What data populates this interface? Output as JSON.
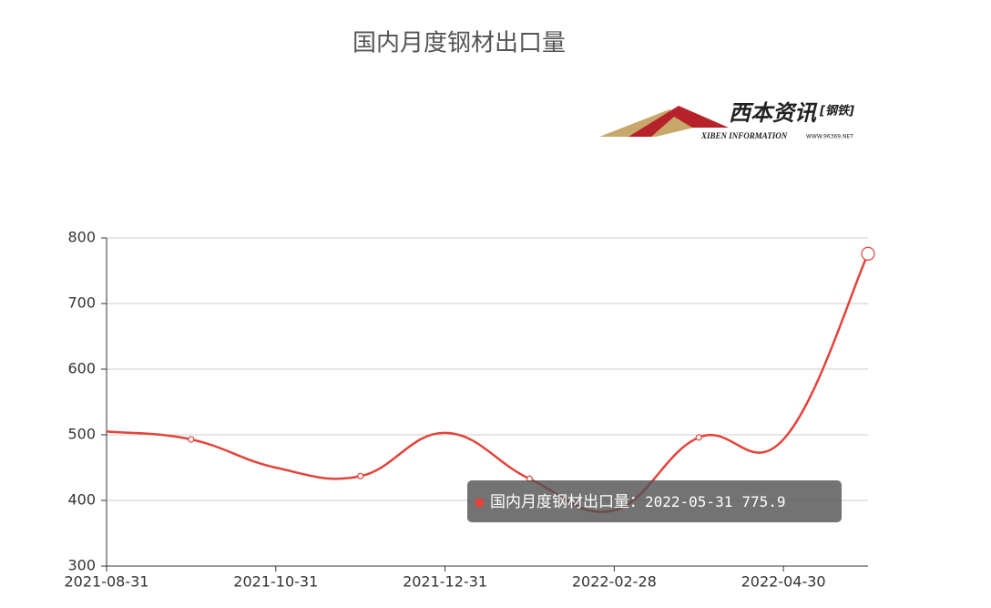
{
  "chart_data": {
    "type": "line",
    "title": "国内月度钢材出口量",
    "categories": [
      "2021-08-31",
      null,
      "2021-10-31",
      null,
      "2021-12-31",
      null,
      "2022-02-28",
      null,
      "2022-04-30",
      null
    ],
    "series": [
      {
        "name": "国内月度钢材出口量",
        "color": "#e2433a",
        "values": [
          505,
          493,
          450,
          437,
          503,
          433,
          385,
          496,
          493,
          775.9
        ]
      }
    ],
    "ylim": [
      300,
      800
    ],
    "yticks": [
      300,
      400,
      500,
      600,
      700,
      800
    ],
    "grid": true,
    "tooltip": {
      "label": "国内月度钢材出口量：",
      "date": "2022-05-31"
    },
    "logo": {
      "name": "西本资讯",
      "tag": "[钢铁]",
      "english": "XIBEN INFORMATION",
      "url": "WWW.96369.NET"
    }
  }
}
